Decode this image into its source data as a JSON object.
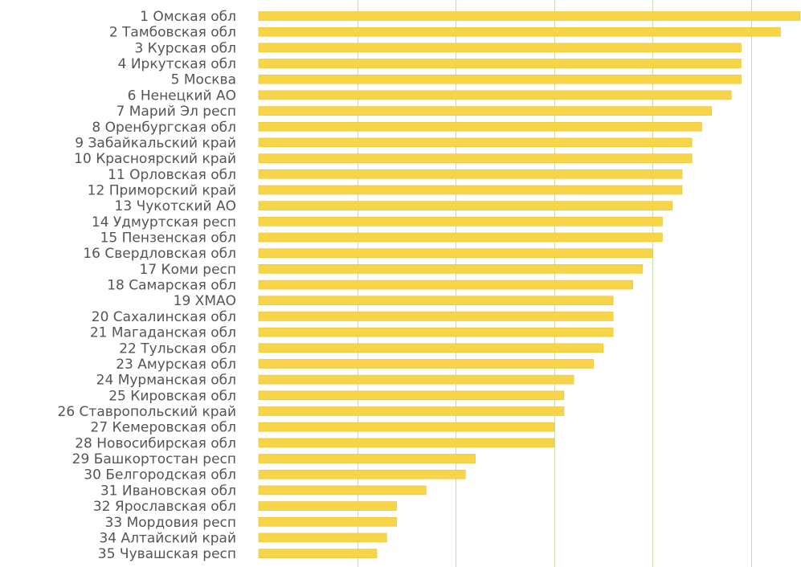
{
  "chart_data": {
    "type": "bar",
    "orientation": "horizontal",
    "title": "",
    "xlabel": "",
    "ylabel": "",
    "grid": true,
    "xlim": [
      0,
      11
    ],
    "colors": {
      "bar": "#F7D448",
      "bar_edge": "#E9C235",
      "grid": "#C7DDAA",
      "label": "#555555"
    },
    "categories": [
      "1 Омская обл",
      "2 Тамбовская обл",
      "3 Курская обл",
      "4 Иркутская обл",
      "5 Москва",
      "6 Ненецкий  АО",
      "7 Марий Эл респ",
      "8 Оренбургская обл",
      "9 Забайкальский край",
      "10 Красноярский край",
      "11 Орловская обл",
      "12 Приморский край",
      "13 Чукотский АО",
      "14 Удмуртская респ",
      "15 Пензенская обл",
      "16 Свердловская обл",
      "17 Коми респ",
      "18 Самарская обл",
      "19 ХМАО",
      "20 Сахалинская обл",
      "21 Магаданская обл",
      "22 Тульская обл",
      "23 Амурская обл",
      "24 Мурманская обл",
      "25 Кировская обл",
      "26 Ставропольский край",
      "27 Кемеровская обл",
      "28 Новосибирская обл",
      "29 Башкортостан респ",
      "30 Белгородская обл",
      "31 Ивановская обл",
      "32 Ярославская обл",
      "33 Мордовия респ",
      "34 Алтайский край",
      "35 Чувашская респ"
    ],
    "values": [
      11.0,
      10.6,
      9.8,
      9.8,
      9.8,
      9.6,
      9.2,
      9.0,
      8.8,
      8.8,
      8.6,
      8.6,
      8.4,
      8.2,
      8.2,
      8.0,
      7.8,
      7.6,
      7.2,
      7.2,
      7.2,
      7.0,
      6.8,
      6.4,
      6.2,
      6.2,
      6.0,
      6.0,
      4.4,
      4.2,
      3.4,
      2.8,
      2.8,
      2.6,
      2.4
    ]
  }
}
